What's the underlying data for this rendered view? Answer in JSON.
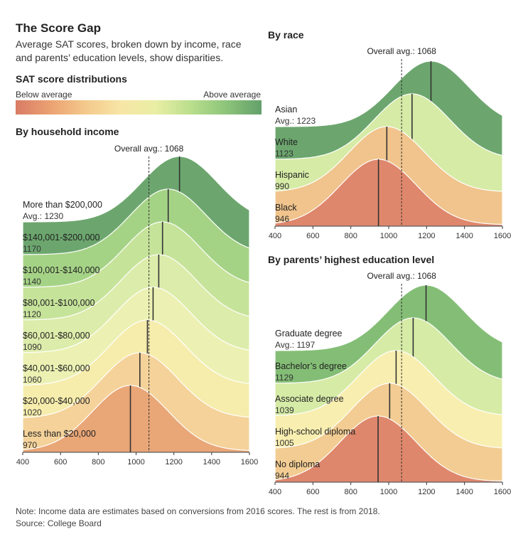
{
  "header": {
    "title": "The Score Gap",
    "subtitle": "Average SAT scores, broken down by income, race and parents’ education levels, show disparities."
  },
  "legend": {
    "title": "SAT score distributions",
    "low_label": "Below average",
    "high_label": "Above average"
  },
  "footer": {
    "note": "Note: Income data are estimates based on conversions from 2016 scores. The rest is from 2018.",
    "source": "Source: College Board"
  },
  "chart_data": [
    {
      "id": "income",
      "type": "area",
      "title": "By household income",
      "overall_label": "Overall avg.: 1068",
      "overall": 1068,
      "xlim": [
        400,
        1600
      ],
      "xticks": [
        "400",
        "600",
        "800",
        "1000",
        "1200",
        "1400",
        "1600"
      ],
      "series": [
        {
          "name": "More than $200,000",
          "label": "Avg.: 1230",
          "mean": 1230,
          "color": "#6ca66e"
        },
        {
          "name": "$140,001-$200,000",
          "label": "1170",
          "mean": 1170,
          "color": "#a5d386"
        },
        {
          "name": "$100,001-$140,000",
          "label": "1140",
          "mean": 1140,
          "color": "#c6e39a"
        },
        {
          "name": "$80,001-$100,000",
          "label": "1120",
          "mean": 1120,
          "color": "#dcecaa"
        },
        {
          "name": "$60,001-$80,000",
          "label": "1090",
          "mean": 1090,
          "color": "#ecf1b3"
        },
        {
          "name": "$40,001-$60,000",
          "label": "1060",
          "mean": 1060,
          "color": "#f6ecac"
        },
        {
          "name": "$20,000-$40,000",
          "label": "1020",
          "mean": 1020,
          "color": "#f4d29a"
        },
        {
          "name": "Less than $20,000",
          "label": "970",
          "mean": 970,
          "color": "#e9a677"
        }
      ]
    },
    {
      "id": "race",
      "type": "area",
      "title": "By race",
      "overall_label": "Overall avg.: 1068",
      "overall": 1068,
      "xlim": [
        400,
        1600
      ],
      "xticks": [
        "400",
        "600",
        "800",
        "1000",
        "1200",
        "1400",
        "1600"
      ],
      "series": [
        {
          "name": "Asian",
          "label": "Avg.: 1223",
          "mean": 1223,
          "color": "#6ca66e"
        },
        {
          "name": "White",
          "label": "1123",
          "mean": 1123,
          "color": "#d6eba6"
        },
        {
          "name": "Hispanic",
          "label": "990",
          "mean": 990,
          "color": "#f0c48c"
        },
        {
          "name": "Black",
          "label": "946",
          "mean": 946,
          "color": "#df876c"
        }
      ]
    },
    {
      "id": "education",
      "type": "area",
      "title": "By parents’ highest education level",
      "overall_label": "Overall avg.: 1068",
      "overall": 1068,
      "xlim": [
        400,
        1600
      ],
      "xticks": [
        "400",
        "600",
        "800",
        "1000",
        "1200",
        "1400",
        "1600"
      ],
      "series": [
        {
          "name": "Graduate degree",
          "label": "Avg.: 1197",
          "mean": 1197,
          "color": "#84be76"
        },
        {
          "name": "Bachelor’s degree",
          "label": "1129",
          "mean": 1129,
          "color": "#d6eba6"
        },
        {
          "name": "Associate degree",
          "label": "1039",
          "mean": 1039,
          "color": "#f8eeb0"
        },
        {
          "name": "High-school diploma",
          "label": "1005",
          "mean": 1005,
          "color": "#f2cc92"
        },
        {
          "name": "No diploma",
          "label": "944",
          "mean": 944,
          "color": "#df876c"
        }
      ]
    }
  ]
}
